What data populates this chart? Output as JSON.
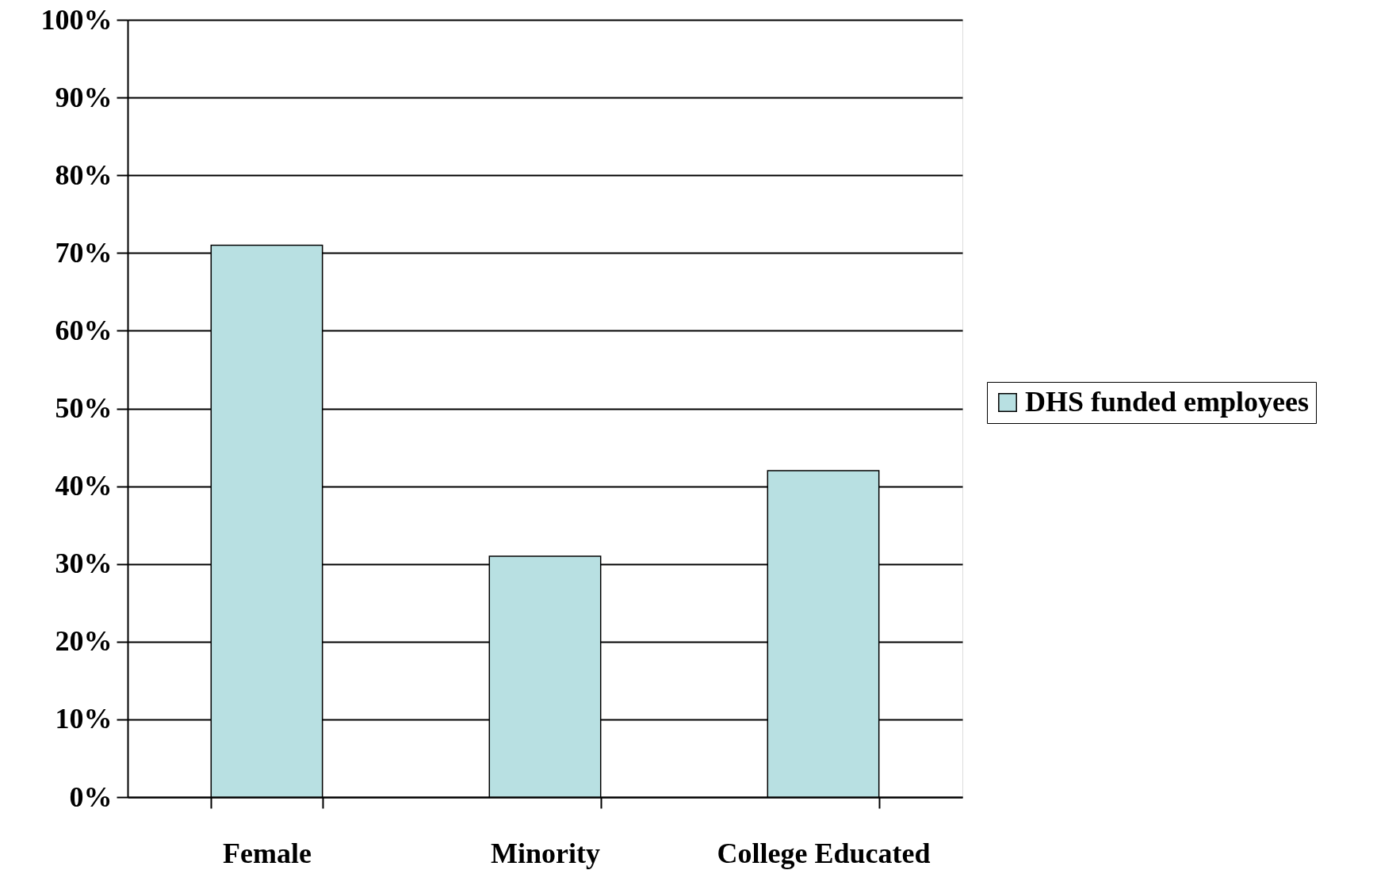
{
  "chart_data": {
    "type": "bar",
    "categories": [
      "Female",
      "Minority",
      "College Educated"
    ],
    "series": [
      {
        "name": "DHS funded employees",
        "color": "#b8e0e2",
        "values": [
          71,
          31,
          42
        ]
      }
    ],
    "ylim": [
      0,
      100
    ],
    "yticks": [
      {
        "value": 0,
        "label": "0%"
      },
      {
        "value": 10,
        "label": "10%"
      },
      {
        "value": 20,
        "label": "20%"
      },
      {
        "value": 30,
        "label": "30%"
      },
      {
        "value": 40,
        "label": "40%"
      },
      {
        "value": 50,
        "label": "50%"
      },
      {
        "value": 60,
        "label": "60%"
      },
      {
        "value": 70,
        "label": "70%"
      },
      {
        "value": 80,
        "label": "80%"
      },
      {
        "value": 90,
        "label": "90%"
      },
      {
        "value": 100,
        "label": "100%"
      }
    ],
    "grid": "y",
    "legend": "right"
  }
}
